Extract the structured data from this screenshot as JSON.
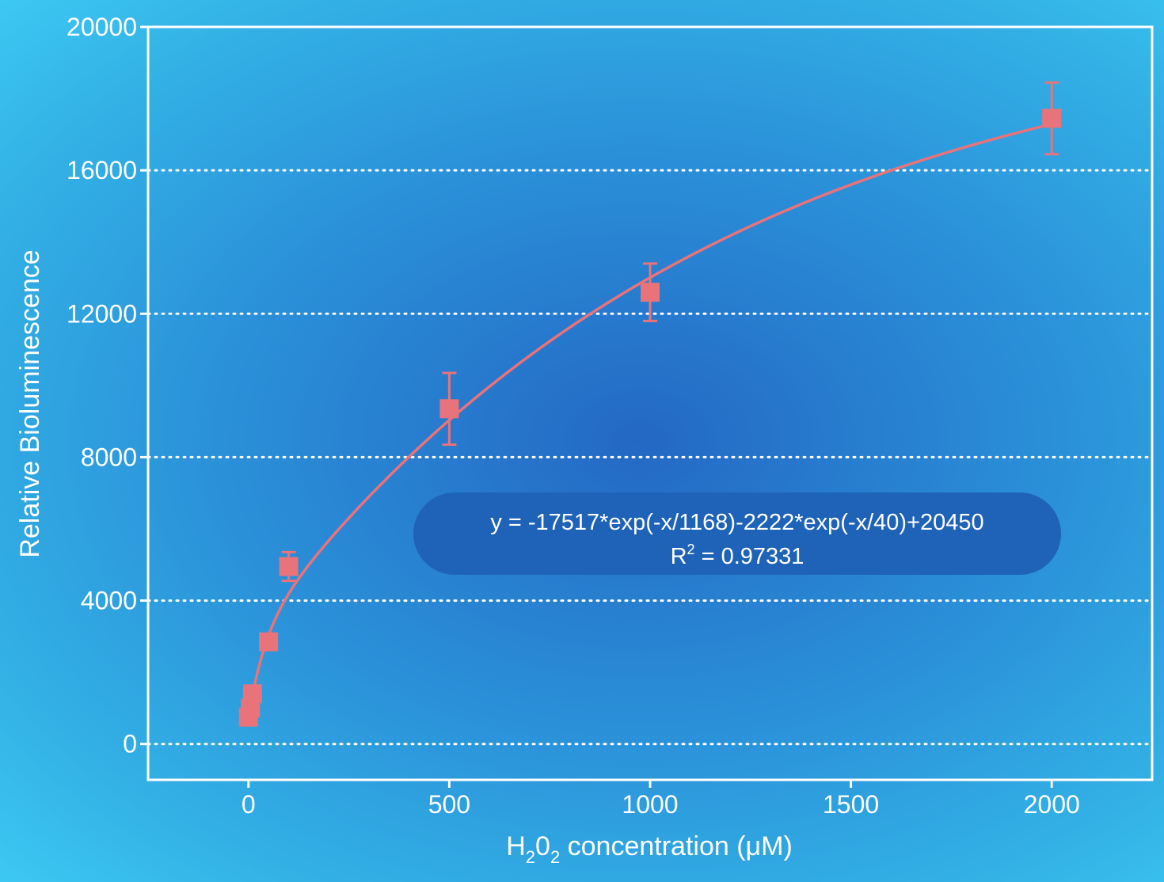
{
  "chart_data": {
    "type": "scatter",
    "xlabel": {
      "main": "H",
      "sub1": "2",
      "mid": "0",
      "sub2": "2",
      "rest": " concentration (μM)"
    },
    "ylabel": "Relative Bioluminescence",
    "xlim": [
      -250,
      2250
    ],
    "ylim": [
      -1000,
      20000
    ],
    "xticks": [
      0,
      500,
      1000,
      1500,
      2000
    ],
    "yticks": [
      0,
      4000,
      8000,
      12000,
      16000,
      20000
    ],
    "grid": "horizontal-dotted",
    "colors": {
      "series": "#e8737a",
      "grid": "#ffffff",
      "axis": "#ffffff",
      "label_box": "#1f63b8"
    },
    "series": [
      {
        "x": [
          0,
          5,
          10,
          50,
          100,
          500,
          1000,
          2000
        ],
        "y": [
          750,
          1000,
          1400,
          2850,
          4950,
          9350,
          12600,
          17450
        ],
        "err": [
          150,
          150,
          200,
          200,
          400,
          1000,
          800,
          1000
        ]
      }
    ],
    "fit": {
      "equation": "y = -17517*exp(-x/1168)-2222*exp(-x/40)+20450",
      "r2_prefix": "R",
      "r2_sup": "2",
      "r2_value": " = 0.97331"
    }
  }
}
